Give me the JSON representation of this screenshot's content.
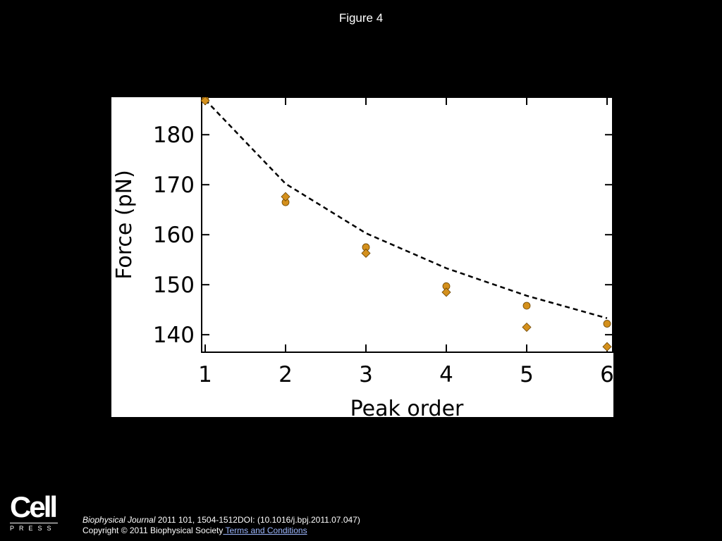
{
  "slide": {
    "title": "Figure 4"
  },
  "chart_data": {
    "type": "scatter",
    "title": "",
    "xlabel": "Peak order",
    "ylabel": "Force (pN)",
    "xlim": [
      1,
      6
    ],
    "ylim": [
      136.5,
      187.5
    ],
    "x_ticks": [
      1,
      2,
      3,
      4,
      5,
      6
    ],
    "y_ticks": [
      140,
      150,
      160,
      170,
      180
    ],
    "grid": false,
    "legend": "none",
    "series": [
      {
        "marker": "circle",
        "color": "#d4901c",
        "x": [
          1,
          2,
          3,
          4,
          5,
          6
        ],
        "y": [
          187,
          166.5,
          157.5,
          149.7,
          145.8,
          142.2
        ]
      },
      {
        "marker": "diamond",
        "color": "#d4901c",
        "x": [
          1,
          2,
          3,
          4,
          5,
          6
        ],
        "y": [
          186.8,
          167.6,
          156.3,
          148.5,
          141.5,
          137.6
        ]
      },
      {
        "marker": "dashed-line",
        "color": "#000000",
        "x": [
          1,
          2,
          3,
          4,
          5,
          6
        ],
        "y": [
          187,
          170.2,
          160.3,
          153.3,
          147.8,
          143.3
        ]
      }
    ]
  },
  "footer": {
    "logo_word": "Cell",
    "logo_sub": "PRESS",
    "journal": "Biophysical Journal",
    "citation_rest": " 2011 101, 1504-1512DOI: (10.1016/j.bpj.2011.07.047)",
    "copyright": "Copyright © 2011 Biophysical Society",
    "terms_link": " Terms and Conditions"
  }
}
